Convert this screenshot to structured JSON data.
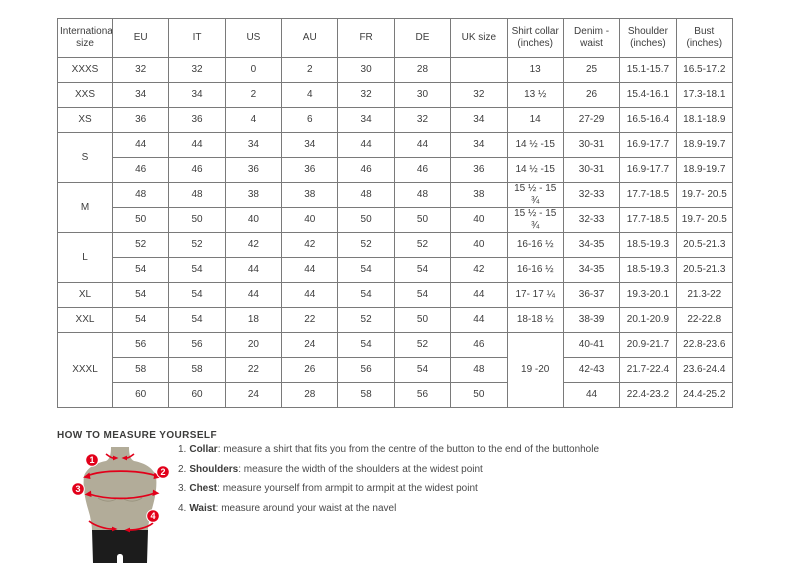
{
  "table": {
    "columns": [
      "International size",
      "EU",
      "IT",
      "US",
      "AU",
      "FR",
      "DE",
      "UK size",
      "Shirt collar (inches)",
      "Denim - waist",
      "Shoulder (inches)",
      "Bust (inches)"
    ],
    "groups": [
      {
        "label": "XXXS",
        "rows": [
          [
            "32",
            "32",
            "0",
            "2",
            "30",
            "28",
            "",
            "13",
            "25",
            "15.1-15.7",
            "16.5-17.2"
          ]
        ]
      },
      {
        "label": "XXS",
        "rows": [
          [
            "34",
            "34",
            "2",
            "4",
            "32",
            "30",
            "32",
            "13 ½",
            "26",
            "15.4-16.1",
            "17.3-18.1"
          ]
        ]
      },
      {
        "label": "XS",
        "rows": [
          [
            "36",
            "36",
            "4",
            "6",
            "34",
            "32",
            "34",
            "14",
            "27-29",
            "16.5-16.4",
            "18.1-18.9"
          ]
        ]
      },
      {
        "label": "S",
        "rows": [
          [
            "44",
            "44",
            "34",
            "34",
            "44",
            "44",
            "34",
            "14 ½ -15",
            "30-31",
            "16.9-17.7",
            "18.9-19.7"
          ],
          [
            "46",
            "46",
            "36",
            "36",
            "46",
            "46",
            "36",
            "14 ½ -15",
            "30-31",
            "16.9-17.7",
            "18.9-19.7"
          ]
        ]
      },
      {
        "label": "M",
        "rows": [
          [
            "48",
            "48",
            "38",
            "38",
            "48",
            "48",
            "38",
            "15 ½ - 15 ¾",
            "32-33",
            "17.7-18.5",
            "19.7- 20.5"
          ],
          [
            "50",
            "50",
            "40",
            "40",
            "50",
            "50",
            "40",
            "15 ½ - 15 ¾",
            "32-33",
            "17.7-18.5",
            "19.7- 20.5"
          ]
        ]
      },
      {
        "label": "L",
        "rows": [
          [
            "52",
            "52",
            "42",
            "42",
            "52",
            "52",
            "40",
            "16-16 ½",
            "34-35",
            "18.5-19.3",
            "20.5-21.3"
          ],
          [
            "54",
            "54",
            "44",
            "44",
            "54",
            "54",
            "42",
            "16-16 ½",
            "34-35",
            "18.5-19.3",
            "20.5-21.3"
          ]
        ]
      },
      {
        "label": "XL",
        "rows": [
          [
            "54",
            "54",
            "44",
            "44",
            "54",
            "54",
            "44",
            "17- 17 ¼",
            "36-37",
            "19.3-20.1",
            "21.3-22"
          ]
        ]
      },
      {
        "label": "XXL",
        "rows": [
          [
            "54",
            "54",
            "18",
            "22",
            "52",
            "50",
            "44",
            "18-18 ½",
            "38-39",
            "20.1-20.9",
            "22-22.8"
          ]
        ]
      },
      {
        "label": "XXXL",
        "merged_collar": "19 -20",
        "rows": [
          [
            "56",
            "56",
            "20",
            "24",
            "54",
            "52",
            "46",
            "40-41",
            "20.9-21.7",
            "22.8-23.6"
          ],
          [
            "58",
            "58",
            "22",
            "26",
            "56",
            "54",
            "48",
            "42-43",
            "21.7-22.4",
            "23.6-24.4"
          ],
          [
            "60",
            "60",
            "24",
            "28",
            "58",
            "56",
            "50",
            "44",
            "22.4-23.2",
            "24.4-25.2"
          ]
        ]
      }
    ]
  },
  "measure": {
    "title": "HOW TO MEASURE YOURSELF",
    "items": [
      {
        "num": "1.",
        "label": "Collar",
        "text": ": measure a shirt that fits you from the centre of the button to the end of the buttonhole"
      },
      {
        "num": "2.",
        "label": "Shoulders",
        "text": ": measure the width of the shoulders at the widest point"
      },
      {
        "num": "3.",
        "label": "Chest",
        "text": ": measure yourself from armpit to armpit at the widest point"
      },
      {
        "num": "4.",
        "label": "Waist",
        "text": ": measure around your waist at the navel"
      }
    ]
  },
  "figure": {
    "markers": [
      "1",
      "2",
      "3",
      "4"
    ]
  },
  "colors": {
    "accent_red": "#e2001a",
    "torso": "#b2ac99",
    "shorts": "#1c1c1c",
    "table_border": "#7a7a7a",
    "table_border_strong": "#4f4f4f",
    "text": "#3d3d3d"
  }
}
